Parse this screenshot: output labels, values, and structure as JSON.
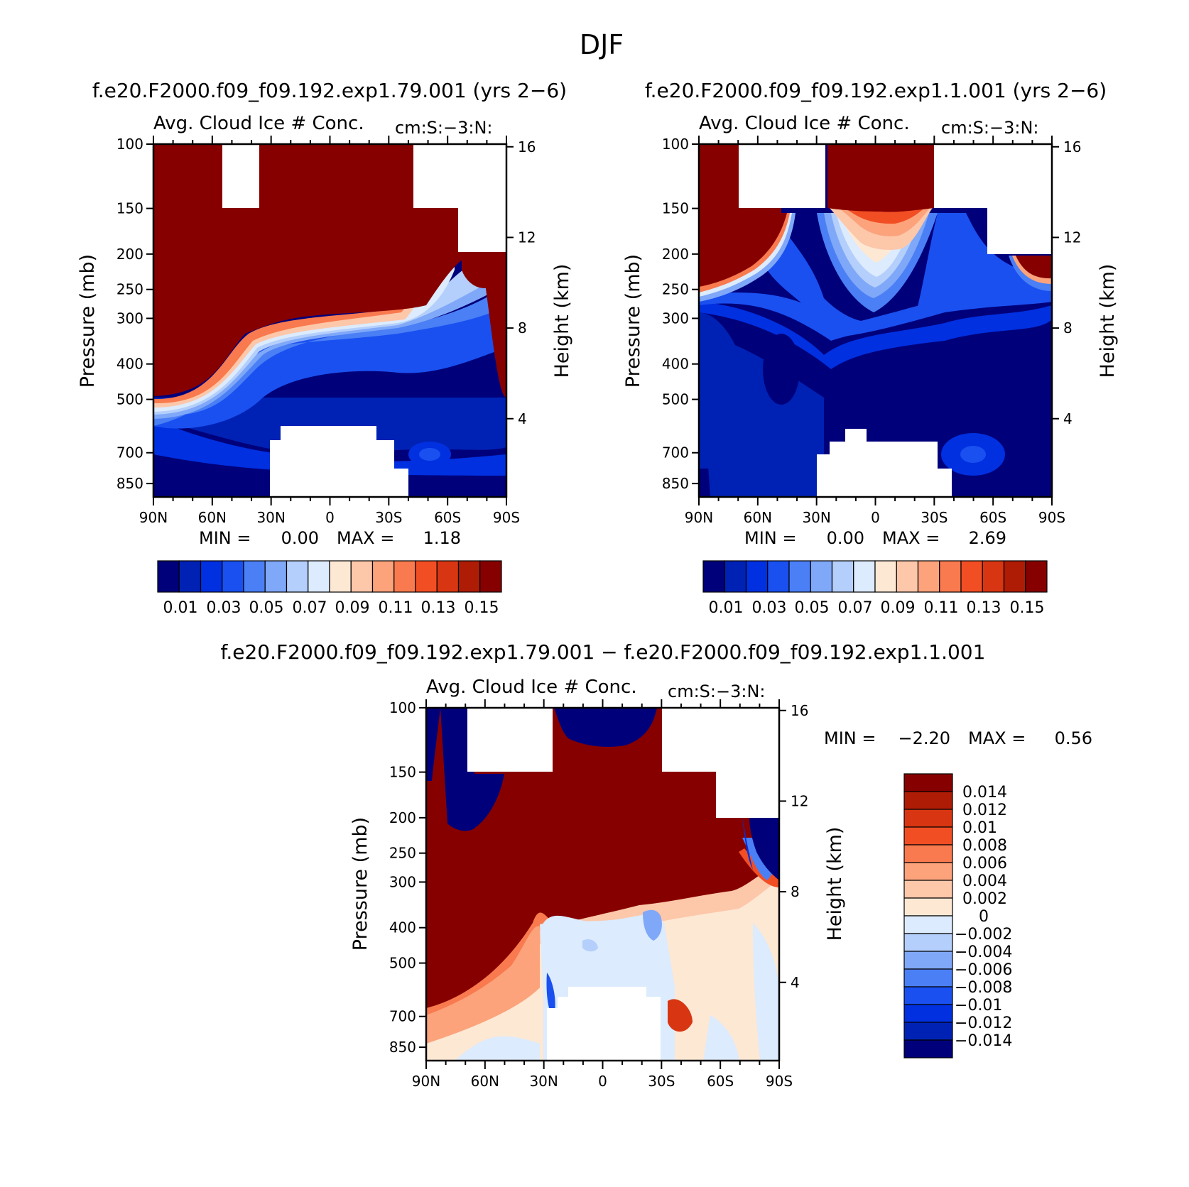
{
  "figure": {
    "title": "DJF",
    "diff_heading": "f.e20.F2000.f09_f09.192.exp1.79.001 − f.e20.F2000.f09_f09.192.exp1.1.001"
  },
  "chart_data": [
    {
      "type": "heatmap",
      "heading": "f.e20.F2000.f09_f09.192.exp1.79.001 (yrs 2−6)",
      "title": "Avg. Cloud Ice # Conc.",
      "units": "cm:S:−3:N:",
      "xlabel": "",
      "ylabel": "Pressure (mb)",
      "ylabel_right": "Height (km)",
      "x_ticks": [
        "90N",
        "60N",
        "30N",
        "0",
        "30S",
        "60S",
        "90S"
      ],
      "y_ticks": [
        "100",
        "150",
        "200",
        "250",
        "300",
        "400",
        "500",
        "700",
        "850"
      ],
      "y_ticks_right": [
        "16",
        "12",
        "8",
        "4"
      ],
      "ylim": [
        100,
        925
      ],
      "min_label": "MIN =",
      "min_value": "0.00",
      "max_label": "MAX =",
      "max_value": "1.18",
      "colorbar_labels": [
        "0.01",
        "0.03",
        "0.05",
        "0.07",
        "0.09",
        "0.11",
        "0.13",
        "0.15"
      ],
      "colorbar_levels": [
        0,
        0.01,
        0.02,
        0.03,
        0.04,
        0.05,
        0.06,
        0.07,
        0.08,
        0.09,
        0.1,
        0.11,
        0.12,
        0.13,
        0.14,
        0.15
      ],
      "colors": [
        "#00007a",
        "#0022b4",
        "#0030e0",
        "#1a50f0",
        "#4a7ff5",
        "#80a8f8",
        "#b4cffb",
        "#dcebfd",
        "#fde8d4",
        "#fdc7aa",
        "#fca37c",
        "#f97a4e",
        "#f24e24",
        "#d83612",
        "#ae1c06",
        "#870000"
      ],
      "fields": {
        "top_boundary_pressure": [
          100,
          100,
          100,
          150,
          150,
          200,
          200
        ],
        "ice_level_pressure": [
          560,
          560,
          500,
          330,
          300,
          150,
          200
        ],
        "surface_gap": "600–925 mb between 20N and 25S"
      }
    },
    {
      "type": "heatmap",
      "heading": "f.e20.F2000.f09_f09.192.exp1.1.001 (yrs 2−6)",
      "title": "Avg. Cloud Ice # Conc.",
      "units": "cm:S:−3:N:",
      "xlabel": "",
      "ylabel": "Pressure (mb)",
      "ylabel_right": "Height (km)",
      "x_ticks": [
        "90N",
        "60N",
        "30N",
        "0",
        "30S",
        "60S",
        "90S"
      ],
      "y_ticks": [
        "100",
        "150",
        "200",
        "250",
        "300",
        "400",
        "500",
        "700",
        "850"
      ],
      "y_ticks_right": [
        "16",
        "12",
        "8",
        "4"
      ],
      "ylim": [
        100,
        925
      ],
      "min_label": "MIN =",
      "min_value": "0.00",
      "max_label": "MAX =",
      "max_value": "2.69",
      "colorbar_labels": [
        "0.01",
        "0.03",
        "0.05",
        "0.07",
        "0.09",
        "0.11",
        "0.13",
        "0.15"
      ],
      "colorbar_levels": [
        0,
        0.01,
        0.02,
        0.03,
        0.04,
        0.05,
        0.06,
        0.07,
        0.08,
        0.09,
        0.1,
        0.11,
        0.12,
        0.13,
        0.14,
        0.15
      ],
      "colors": [
        "#00007a",
        "#0022b4",
        "#0030e0",
        "#1a50f0",
        "#4a7ff5",
        "#80a8f8",
        "#b4cffb",
        "#dcebfd",
        "#fde8d4",
        "#fdc7aa",
        "#fca37c",
        "#f97a4e",
        "#f24e24",
        "#d83612",
        "#ae1c06",
        "#870000"
      ],
      "fields": {
        "top_boundary_pressure": [
          100,
          150,
          100,
          100,
          150,
          200,
          200
        ],
        "ice_level_pressure": [
          290,
          220,
          140,
          140,
          140,
          230,
          260
        ],
        "surface_gap": "600–925 mb between 25N and 30S"
      }
    },
    {
      "type": "heatmap",
      "heading": "",
      "title": "Avg. Cloud Ice # Conc.",
      "units": "cm:S:−3:N:",
      "xlabel": "",
      "ylabel": "Pressure (mb)",
      "ylabel_right": "Height (km)",
      "x_ticks": [
        "90N",
        "60N",
        "30N",
        "0",
        "30S",
        "60S",
        "90S"
      ],
      "y_ticks": [
        "100",
        "150",
        "200",
        "250",
        "300",
        "400",
        "500",
        "700",
        "850"
      ],
      "y_ticks_right": [
        "16",
        "12",
        "8",
        "4"
      ],
      "ylim": [
        100,
        925
      ],
      "min_label": "MIN =",
      "min_value": "−2.20",
      "max_label": "MAX =",
      "max_value": "0.56",
      "colorbar_labels": [
        "0.014",
        "0.012",
        "0.01",
        "0.008",
        "0.006",
        "0.004",
        "0.002",
        "0",
        "−0.002",
        "−0.004",
        "−0.006",
        "−0.008",
        "−0.01",
        "−0.012",
        "−0.014"
      ],
      "colorbar_levels": [
        0.014,
        0.012,
        0.01,
        0.008,
        0.006,
        0.004,
        0.002,
        0,
        -0.002,
        -0.004,
        -0.006,
        -0.008,
        -0.01,
        -0.012,
        -0.014
      ],
      "colors": [
        "#870000",
        "#ae1c06",
        "#d83612",
        "#f24e24",
        "#f97a4e",
        "#fca37c",
        "#fdc7aa",
        "#fde8d4",
        "#dcebfd",
        "#b4cffb",
        "#80a8f8",
        "#4a7ff5",
        "#1a50f0",
        "#0030e0",
        "#0022b4",
        "#00007a"
      ],
      "fields": {
        "positive_region_lower_bound_pressure": [
          560,
          560,
          390,
          340,
          340,
          300,
          150
        ],
        "negative_regions": [
          "80N–70N 100–220 mb",
          "25N–25S 100–120 mb",
          "85S–90S 200–260 mb"
        ],
        "surface_gap": "600–925 mb between 25N and 30S"
      }
    }
  ]
}
